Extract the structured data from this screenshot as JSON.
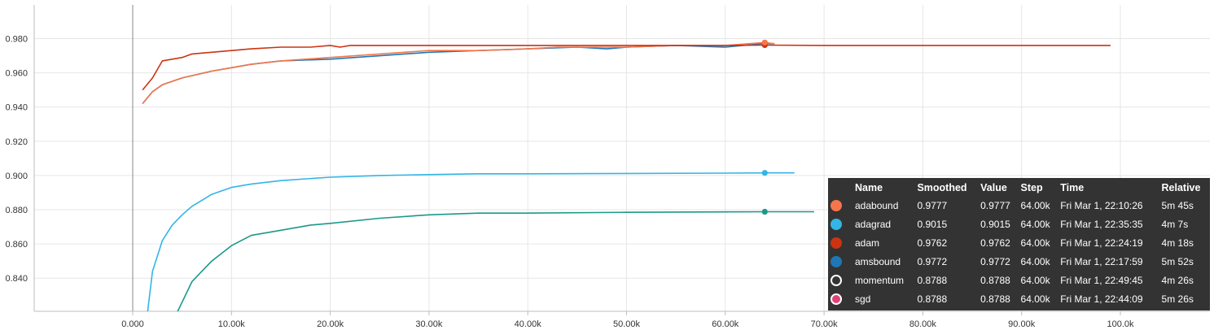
{
  "chart_data": {
    "type": "line",
    "xlim": [
      -10000,
      110000
    ],
    "ylim": [
      0.82,
      0.99
    ],
    "x_ticks": [
      0,
      10000,
      20000,
      30000,
      40000,
      50000,
      60000,
      70000,
      80000,
      90000,
      100000
    ],
    "x_tick_labels": [
      "0.000",
      "10.00k",
      "20.00k",
      "30.00k",
      "40.00k",
      "50.00k",
      "60.00k",
      "70.00k",
      "80.00k",
      "90.00k",
      "100.0k"
    ],
    "y_ticks": [
      0.84,
      0.86,
      0.88,
      0.9,
      0.92,
      0.94,
      0.96,
      0.98
    ],
    "y_tick_labels": [
      "0.840",
      "0.860",
      "0.880",
      "0.900",
      "0.920",
      "0.940",
      "0.960",
      "0.980"
    ],
    "grid": true,
    "hover_step": 64000,
    "series": [
      {
        "name": "adabound",
        "color": "#f4764a",
        "x": [
          1000,
          2000,
          3000,
          5000,
          8000,
          10000,
          12000,
          15000,
          20000,
          25000,
          30000,
          35000,
          40000,
          43000,
          45000,
          50000,
          55000,
          60000,
          64000,
          65000
        ],
        "y": [
          0.942,
          0.949,
          0.953,
          0.957,
          0.961,
          0.963,
          0.965,
          0.967,
          0.969,
          0.971,
          0.973,
          0.973,
          0.974,
          0.975,
          0.975,
          0.975,
          0.976,
          0.976,
          0.9777,
          0.977
        ]
      },
      {
        "name": "adagrad",
        "color": "#33b5e5",
        "x": [
          1500,
          2000,
          3000,
          4000,
          5000,
          6000,
          8000,
          10000,
          12000,
          15000,
          20000,
          25000,
          30000,
          35000,
          40000,
          50000,
          60000,
          64000,
          67000
        ],
        "y": [
          0.82,
          0.844,
          0.862,
          0.871,
          0.877,
          0.882,
          0.889,
          0.893,
          0.895,
          0.897,
          0.899,
          0.9,
          0.9005,
          0.901,
          0.901,
          0.9012,
          0.9014,
          0.9015,
          0.9015
        ]
      },
      {
        "name": "adam",
        "color": "#cc3311",
        "x": [
          1000,
          2000,
          3000,
          4000,
          5000,
          6000,
          8000,
          10000,
          12000,
          15000,
          18000,
          20000,
          21000,
          22000,
          25000,
          30000,
          35000,
          40000,
          43000,
          45000,
          50000,
          60000,
          64000,
          70000,
          80000,
          90000,
          99000
        ],
        "y": [
          0.95,
          0.957,
          0.967,
          0.968,
          0.969,
          0.971,
          0.972,
          0.973,
          0.974,
          0.975,
          0.975,
          0.976,
          0.975,
          0.976,
          0.976,
          0.976,
          0.976,
          0.976,
          0.976,
          0.976,
          0.976,
          0.976,
          0.9762,
          0.976,
          0.976,
          0.976,
          0.976
        ]
      },
      {
        "name": "amsbound",
        "color": "#1f77b4",
        "x": [
          1000,
          2000,
          3000,
          5000,
          8000,
          10000,
          12000,
          15000,
          20000,
          25000,
          30000,
          35000,
          40000,
          45000,
          48000,
          50000,
          55000,
          60000,
          64000,
          65000
        ],
        "y": [
          0.942,
          0.949,
          0.953,
          0.957,
          0.961,
          0.963,
          0.965,
          0.967,
          0.968,
          0.97,
          0.972,
          0.973,
          0.974,
          0.975,
          0.974,
          0.975,
          0.976,
          0.975,
          0.9772,
          0.977
        ]
      },
      {
        "name": "momentum",
        "color": "#1a9988",
        "x": [
          4500,
          5000,
          6000,
          8000,
          10000,
          12000,
          15000,
          18000,
          20000,
          25000,
          30000,
          35000,
          40000,
          50000,
          60000,
          64000,
          69000
        ],
        "y": [
          0.82,
          0.826,
          0.838,
          0.85,
          0.859,
          0.865,
          0.868,
          0.871,
          0.872,
          0.875,
          0.877,
          0.878,
          0.878,
          0.8785,
          0.8787,
          0.8788,
          0.8788
        ]
      },
      {
        "name": "sgd",
        "color": "#e0427a",
        "x": [],
        "y": []
      }
    ]
  },
  "tooltip": {
    "headers": [
      "Name",
      "Smoothed",
      "Value",
      "Step",
      "Time",
      "Relative"
    ],
    "rows": [
      {
        "name": "adabound",
        "smoothed": "0.9777",
        "value": "0.9777",
        "step": "64.00k",
        "time": "Fri Mar 1, 22:10:26",
        "relative": "5m 45s",
        "color": "#f4764a",
        "hollow": false
      },
      {
        "name": "adagrad",
        "smoothed": "0.9015",
        "value": "0.9015",
        "step": "64.00k",
        "time": "Fri Mar 1, 22:35:35",
        "relative": "4m 7s",
        "color": "#33b5e5",
        "hollow": false
      },
      {
        "name": "adam",
        "smoothed": "0.9762",
        "value": "0.9762",
        "step": "64.00k",
        "time": "Fri Mar 1, 22:24:19",
        "relative": "4m 18s",
        "color": "#cc3311",
        "hollow": false
      },
      {
        "name": "amsbound",
        "smoothed": "0.9772",
        "value": "0.9772",
        "step": "64.00k",
        "time": "Fri Mar 1, 22:17:59",
        "relative": "5m 52s",
        "color": "#1f77b4",
        "hollow": false
      },
      {
        "name": "momentum",
        "smoothed": "0.8788",
        "value": "0.8788",
        "step": "64.00k",
        "time": "Fri Mar 1, 22:49:45",
        "relative": "4m 26s",
        "color": "#1a9988",
        "hollow": true
      },
      {
        "name": "sgd",
        "smoothed": "0.8788",
        "value": "0.8788",
        "step": "64.00k",
        "time": "Fri Mar 1, 22:44:09",
        "relative": "5m 26s",
        "color": "#e0427a",
        "hollow": false
      }
    ]
  }
}
